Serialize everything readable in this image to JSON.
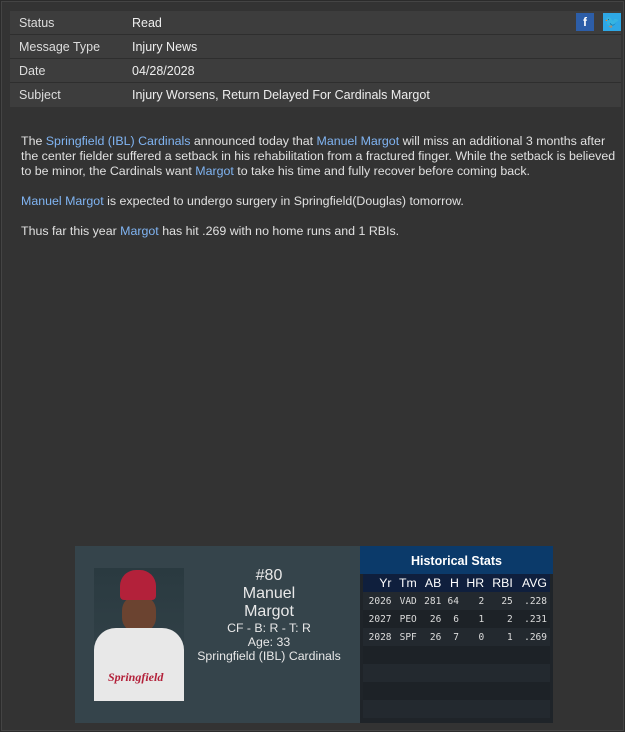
{
  "header": {
    "rows": [
      {
        "label": "Status",
        "value": "Read"
      },
      {
        "label": "Message Type",
        "value": "Injury News"
      },
      {
        "label": "Date",
        "value": "04/28/2028"
      },
      {
        "label": "Subject",
        "value": "Injury Worsens, Return Delayed For Cardinals Margot"
      }
    ],
    "social": {
      "facebook": "f",
      "twitter": "t"
    }
  },
  "article": {
    "p1": {
      "pre": "The ",
      "team": "Springfield (IBL) Cardinals",
      "mid1": " announced today that ",
      "player": "Manuel Margot",
      "mid2": " will miss an additional 3 months after the center fielder suffered a setback in his rehabilitation from a fractured finger. While the setback is believed to be minor, the Cardinals want ",
      "player_short": "Margot",
      "post": " to take his time and fully recover before coming back."
    },
    "p2": {
      "player": "Manuel Margot",
      "post": " is expected to undergo surgery in Springfield(Douglas) tomorrow."
    },
    "p3": {
      "pre": "Thus far this year ",
      "player_short": "Margot",
      "post": " has hit .269 with no home runs and 1 RBIs."
    }
  },
  "player_card": {
    "number": "#80",
    "first_name": "Manuel",
    "last_name": "Margot",
    "position_line": "CF - B: R - T: R",
    "age": "Age: 33",
    "team": "Springfield (IBL) Cardinals",
    "jersey_text": "Springfield"
  },
  "stats": {
    "title": "Historical Stats",
    "columns": [
      "Yr",
      "Tm",
      "AB",
      "H",
      "HR",
      "RBI",
      "AVG"
    ],
    "rows": [
      [
        "2026",
        "VAD",
        "281",
        "64",
        "2",
        "25",
        ".228"
      ],
      [
        "2027",
        "PEO",
        "26",
        "6",
        "1",
        "2",
        ".231"
      ],
      [
        "2028",
        "SPF",
        "26",
        "7",
        "0",
        "1",
        ".269"
      ]
    ]
  }
}
